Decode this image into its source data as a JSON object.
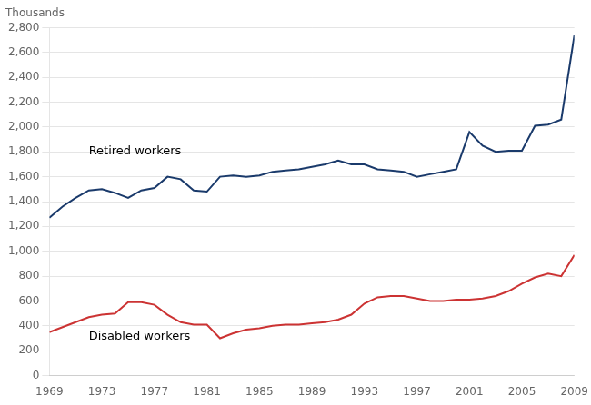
{
  "chart_data": {
    "type": "line",
    "y_label": "Thousands",
    "x": [
      1969,
      1970,
      1971,
      1972,
      1973,
      1974,
      1975,
      1976,
      1977,
      1978,
      1979,
      1980,
      1981,
      1982,
      1983,
      1984,
      1985,
      1986,
      1987,
      1988,
      1989,
      1990,
      1991,
      1992,
      1993,
      1994,
      1995,
      1996,
      1997,
      1998,
      1999,
      2000,
      2001,
      2002,
      2003,
      2004,
      2005,
      2006,
      2007,
      2008,
      2009
    ],
    "series": [
      {
        "color": "#1a3a6b",
        "values": [
          1270,
          1360,
          1430,
          1490,
          1500,
          1470,
          1430,
          1490,
          1510,
          1600,
          1580,
          1490,
          1480,
          1600,
          1610,
          1600,
          1610,
          1640,
          1650,
          1660,
          1680,
          1700,
          1730,
          1700,
          1700,
          1660,
          1650,
          1640,
          1600,
          1620,
          1640,
          1660,
          1960,
          1850,
          1800,
          1810,
          1810,
          2010,
          2020,
          2060,
          2740
        ]
      },
      {
        "color": "#cc3333",
        "values": [
          350,
          390,
          430,
          470,
          490,
          500,
          590,
          590,
          570,
          490,
          430,
          410,
          410,
          300,
          340,
          370,
          380,
          400,
          410,
          410,
          420,
          430,
          450,
          490,
          580,
          630,
          640,
          640,
          620,
          600,
          600,
          610,
          610,
          620,
          640,
          680,
          740,
          790,
          820,
          800,
          970
        ]
      }
    ],
    "annotations": [
      {
        "text": "Retired workers",
        "x": 1972,
        "y": 1760
      },
      {
        "text": "Disabled workers",
        "x": 1972,
        "y": 270
      }
    ],
    "xlim": [
      1969,
      2009
    ],
    "xticks": [
      1969,
      1973,
      1977,
      1981,
      1985,
      1989,
      1993,
      1997,
      2001,
      2005,
      2009
    ],
    "ylim": [
      0,
      2800
    ],
    "yticks": [
      0,
      200,
      400,
      600,
      800,
      {
        "value": 1000,
        "label": "1,000"
      },
      {
        "value": 1200,
        "label": "1,200"
      },
      {
        "value": 1400,
        "label": "1,400"
      },
      {
        "value": 1600,
        "label": "1,600"
      },
      {
        "value": 1800,
        "label": "1,800"
      },
      {
        "value": 2000,
        "label": "2,000"
      },
      {
        "value": 2200,
        "label": "2,200"
      },
      {
        "value": 2400,
        "label": "2,400"
      },
      {
        "value": 2600,
        "label": "2,600"
      },
      {
        "value": 2800,
        "label": "2,800"
      }
    ],
    "grid": "y"
  }
}
